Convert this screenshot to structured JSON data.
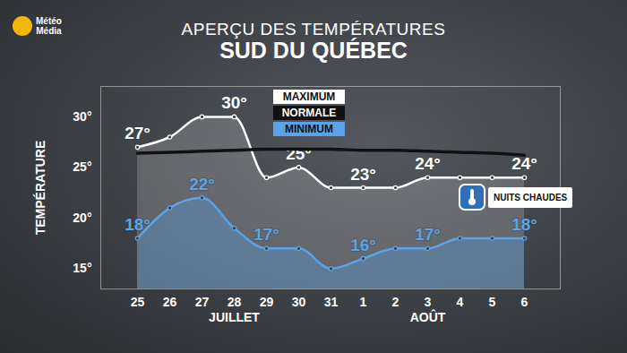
{
  "chart_data": {
    "type": "line",
    "title": "APERÇU DES TEMPÉRATURES",
    "subtitle": "SUD DU QUÉBEC",
    "y_label": "TEMPÉRATURE",
    "logo": [
      "Météo",
      "Média"
    ],
    "categories": [
      "25",
      "26",
      "27",
      "28",
      "29",
      "30",
      "31",
      "1",
      "2",
      "3",
      "4",
      "5",
      "6"
    ],
    "month_labels": [
      {
        "label": "JUILLET",
        "category": "28"
      },
      {
        "label": "AOÛT",
        "category": "3"
      }
    ],
    "ylim": [
      13,
      33
    ],
    "yticks": [
      {
        "value": 15,
        "label": "15°"
      },
      {
        "value": 20,
        "label": "20°"
      },
      {
        "value": 25,
        "label": "25°"
      },
      {
        "value": 30,
        "label": "30°"
      }
    ],
    "grid": false,
    "legend": "top",
    "data_labels": true,
    "series": [
      {
        "name": "MAXIMUM",
        "color": "#ffffff",
        "marker": "circle",
        "values": [
          27,
          28,
          30,
          30,
          24,
          25,
          23,
          23,
          23,
          24,
          24,
          24,
          24
        ],
        "value_labels": [
          "27°",
          null,
          null,
          "30°",
          null,
          "25°",
          null,
          "23°",
          null,
          "24°",
          null,
          null,
          "24°"
        ]
      },
      {
        "name": "NORMALE",
        "color": "#111111",
        "values": [
          26.4,
          26.5,
          26.6,
          26.7,
          26.8,
          26.8,
          26.8,
          26.7,
          26.7,
          26.6,
          26.5,
          26.4,
          26.2
        ]
      },
      {
        "name": "MINIMUM",
        "color": "#5aa3e8",
        "marker": "circle",
        "values": [
          18,
          21,
          22,
          19,
          17,
          17,
          15,
          16,
          17,
          17,
          18,
          18,
          18
        ],
        "value_labels": [
          "18°",
          null,
          "22°",
          null,
          "17°",
          null,
          null,
          "16°",
          null,
          "17°",
          null,
          null,
          "18°"
        ]
      }
    ],
    "annotations": [
      {
        "text": "NUITS CHAUDES"
      }
    ]
  }
}
